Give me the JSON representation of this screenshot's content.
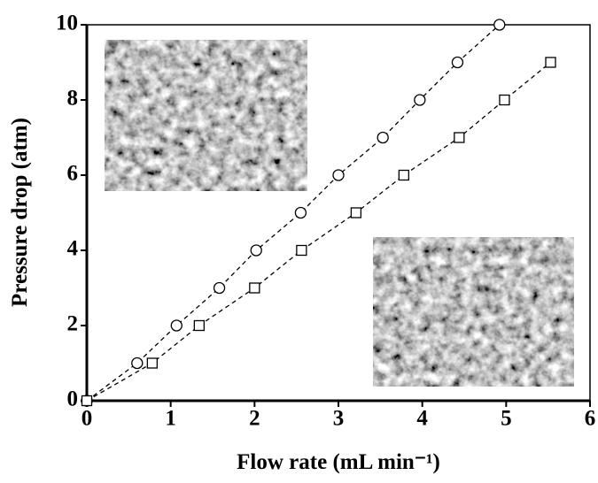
{
  "chart_data": {
    "type": "scatter",
    "xlabel": "Flow rate (mL min⁻¹)",
    "ylabel": "Pressure drop (atm)",
    "xlim": [
      0,
      6
    ],
    "ylim": [
      0,
      10
    ],
    "xticks": [
      0,
      1,
      2,
      3,
      4,
      5,
      6
    ],
    "yticks": [
      0,
      2,
      4,
      6,
      8,
      10
    ],
    "series": [
      {
        "marker": "circle",
        "color": "#000000",
        "line_style": "dashed",
        "x": [
          0,
          0.6,
          1.07,
          1.58,
          2.02,
          2.55,
          3.0,
          3.53,
          3.97,
          4.42,
          4.92
        ],
        "values": [
          0,
          1,
          2,
          3,
          4,
          5,
          6,
          7,
          8,
          9,
          10
        ]
      },
      {
        "marker": "square",
        "color": "#000000",
        "line_style": "dashed",
        "x": [
          0,
          0.78,
          1.34,
          2.0,
          2.56,
          3.21,
          3.78,
          4.44,
          4.98,
          5.53
        ],
        "values": [
          0,
          1,
          2,
          3,
          4,
          5,
          6,
          7,
          8,
          9
        ]
      }
    ]
  }
}
